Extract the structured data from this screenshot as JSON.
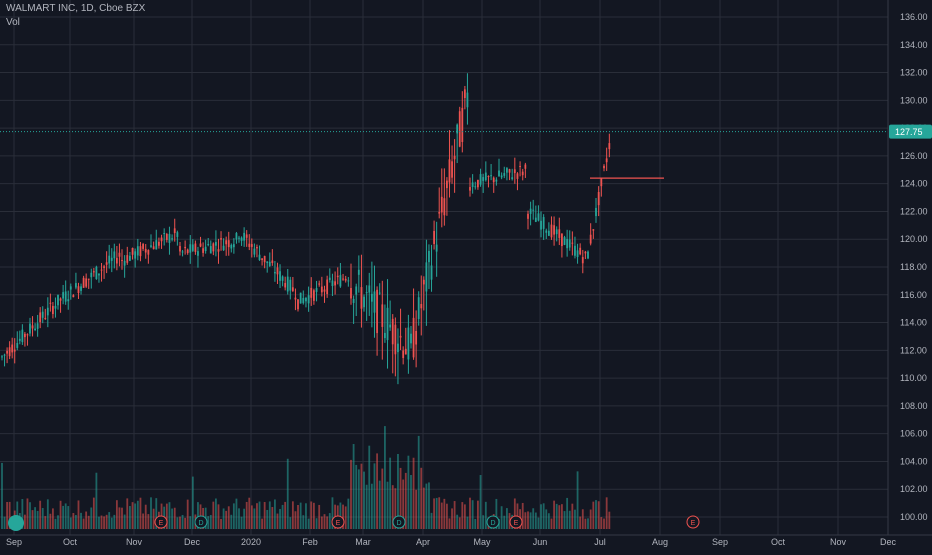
{
  "header": {
    "symbol_line": "WALMART INC, 1D, Cboe BZX",
    "volume_label": "Vol"
  },
  "colors": {
    "background": "#131722",
    "grid": "#2a2e39",
    "up": "#26a69a",
    "down": "#ef5350",
    "text": "#b2b5be",
    "last_price_bg": "#26a69a"
  },
  "chart_data": {
    "type": "candlestick",
    "title": "WALMART INC, 1D, Cboe BZX",
    "y_axis": {
      "ticks": [
        100,
        102,
        104,
        106,
        108,
        110,
        112,
        114,
        116,
        118,
        120,
        122,
        124,
        126,
        128,
        130,
        132,
        134,
        136
      ],
      "ylim": [
        99,
        137
      ],
      "position": "right"
    },
    "x_axis": {
      "ticks": [
        "Sep",
        "Oct",
        "Nov",
        "Dec",
        "2020",
        "Feb",
        "Mar",
        "Apr",
        "May",
        "Jun",
        "Jul",
        "Aug",
        "Sep",
        "Oct",
        "Nov",
        "Dec"
      ]
    },
    "last_price": 127.75,
    "grid": true,
    "ohlc_path": [
      {
        "month": "Sep",
        "start": 111.5,
        "end": 115.5
      },
      {
        "month": "Oct",
        "start": 115.5,
        "end": 119.0
      },
      {
        "month": "Nov",
        "start": 118.5,
        "end": 120.5
      },
      {
        "month": "Dec",
        "start": 119.0,
        "end": 120.0
      },
      {
        "month": "2020",
        "start": 120.5,
        "end": 116.0
      },
      {
        "month": "Feb",
        "start": 115.5,
        "end": 117.5
      },
      {
        "month": "Mar",
        "start": 117.0,
        "end": 112.0
      },
      {
        "month": "Apr",
        "start": 112.0,
        "end": 131.0
      },
      {
        "month": "May",
        "start": 124.0,
        "end": 125.0
      },
      {
        "month": "Jun",
        "start": 122.0,
        "end": 118.5
      },
      {
        "month": "Jul",
        "start": 119.0,
        "end": 127.75
      }
    ],
    "horizontal_line": {
      "value": 124.4,
      "color": "#ef5350"
    },
    "event_markers": [
      {
        "label": "E",
        "month": "Nov",
        "color": "#ef5350"
      },
      {
        "label": "D",
        "month": "Dec",
        "color": "#26a69a"
      },
      {
        "label": "E",
        "month": "Feb",
        "color": "#ef5350"
      },
      {
        "label": "D",
        "month": "Mar",
        "color": "#26a69a"
      },
      {
        "label": "D",
        "month": "May",
        "color": "#26a69a"
      },
      {
        "label": "E",
        "month": "May",
        "color": "#ef5350"
      },
      {
        "label": "E",
        "month": "Aug",
        "color": "#ef5350"
      }
    ]
  }
}
